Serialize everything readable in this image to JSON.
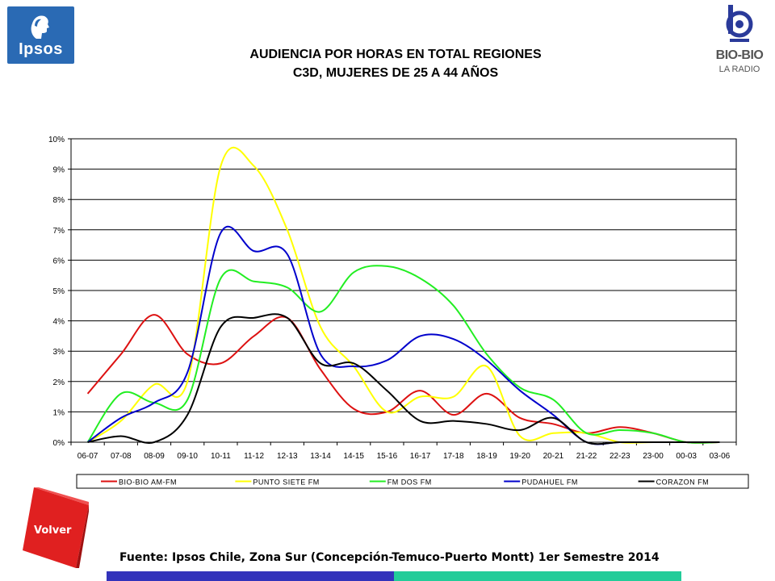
{
  "header": {
    "logo_left": "Ipsos",
    "title_line1": "AUDIENCIA POR HORAS EN TOTAL REGIONES",
    "title_line2": "C3D, MUJERES DE 25 A 44 AÑOS",
    "logo_right_name": "BIO-BIO",
    "logo_right_sub": "LA RADIO"
  },
  "footer": {
    "volver_label": "Volver",
    "source": "Fuente: Ipsos Chile, Zona Sur (Concepción-Temuco-Puerto Montt) 1er Semestre 2014"
  },
  "colors": {
    "ipsos_blue": "#2a6ab4",
    "volver_red": "#e02020",
    "bar_blue": "#3333bb",
    "bar_green": "#22cc99"
  },
  "chart_data": {
    "type": "line",
    "categories": [
      "06-07",
      "07-08",
      "08-09",
      "09-10",
      "10-11",
      "11-12",
      "12-13",
      "13-14",
      "14-15",
      "15-16",
      "16-17",
      "17-18",
      "18-19",
      "19-20",
      "20-21",
      "21-22",
      "22-23",
      "23-00",
      "00-03",
      "03-06"
    ],
    "y_tick_labels": [
      "0%",
      "1%",
      "2%",
      "3%",
      "4%",
      "5%",
      "6%",
      "7%",
      "8%",
      "9%",
      "10%"
    ],
    "ylim": [
      0,
      10
    ],
    "grid": true,
    "legend_position": "bottom",
    "series": [
      {
        "name": "BIO-BIO AM-FM",
        "color": "#dd1111",
        "values": [
          1.6,
          2.9,
          4.2,
          2.9,
          2.6,
          3.5,
          4.1,
          2.4,
          1.1,
          1.0,
          1.7,
          0.9,
          1.6,
          0.8,
          0.6,
          0.3,
          0.5,
          0.3,
          0.0,
          0.0
        ]
      },
      {
        "name": "PUNTO SIETE FM",
        "color": "#ffff00",
        "values": [
          0.0,
          0.7,
          1.9,
          2.0,
          9.1,
          9.1,
          7.0,
          3.8,
          2.5,
          1.0,
          1.5,
          1.5,
          2.5,
          0.2,
          0.3,
          0.3,
          0.0,
          0.0,
          0.0,
          0.0
        ]
      },
      {
        "name": "FM DOS FM",
        "color": "#22ee22",
        "values": [
          0.0,
          1.6,
          1.3,
          1.4,
          5.4,
          5.3,
          5.1,
          4.3,
          5.6,
          5.8,
          5.4,
          4.5,
          2.9,
          1.8,
          1.4,
          0.3,
          0.4,
          0.3,
          0.0,
          0.0
        ]
      },
      {
        "name": "PUDAHUEL FM",
        "color": "#0000cc",
        "values": [
          0.0,
          0.8,
          1.3,
          2.3,
          6.9,
          6.3,
          6.2,
          2.9,
          2.5,
          2.7,
          3.5,
          3.4,
          2.7,
          1.7,
          0.9,
          0.0,
          0.0,
          0.0,
          0.0,
          0.0
        ]
      },
      {
        "name": "CORAZON FM",
        "color": "#000000",
        "values": [
          0.0,
          0.2,
          0.0,
          0.9,
          3.8,
          4.1,
          4.1,
          2.6,
          2.6,
          1.7,
          0.7,
          0.7,
          0.6,
          0.4,
          0.8,
          0.0,
          0.0,
          0.0,
          0.0,
          0.0
        ]
      }
    ]
  }
}
